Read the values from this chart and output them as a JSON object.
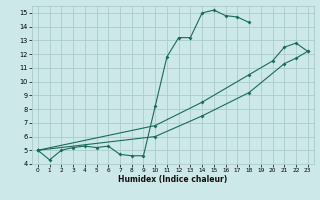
{
  "xlabel": "Humidex (Indice chaleur)",
  "bg_color": "#cce8e8",
  "grid_color": "#aacccc",
  "line_color": "#1a6b5a",
  "xlim": [
    -0.5,
    23.5
  ],
  "ylim": [
    4,
    15.5
  ],
  "xticks": [
    0,
    1,
    2,
    3,
    4,
    5,
    6,
    7,
    8,
    9,
    10,
    11,
    12,
    13,
    14,
    15,
    16,
    17,
    18,
    19,
    20,
    21,
    22,
    23
  ],
  "yticks": [
    4,
    5,
    6,
    7,
    8,
    9,
    10,
    11,
    12,
    13,
    14,
    15
  ],
  "line1_x": [
    0,
    1,
    2,
    3,
    4,
    5,
    6,
    7,
    8,
    9,
    10,
    11,
    12,
    13,
    14,
    15,
    16,
    17,
    18
  ],
  "line1_y": [
    5.0,
    4.3,
    5.0,
    5.2,
    5.3,
    5.2,
    5.3,
    4.7,
    4.6,
    4.6,
    8.2,
    11.8,
    13.2,
    13.2,
    15.0,
    15.2,
    14.8,
    14.7,
    14.3
  ],
  "line2_x": [
    0,
    10,
    14,
    18,
    20,
    21,
    22,
    23
  ],
  "line2_y": [
    5.0,
    6.8,
    8.5,
    10.5,
    11.5,
    12.5,
    12.8,
    12.2
  ],
  "line3_x": [
    0,
    10,
    14,
    18,
    21,
    22,
    23
  ],
  "line3_y": [
    5.0,
    6.0,
    7.5,
    9.2,
    11.3,
    11.7,
    12.2
  ]
}
